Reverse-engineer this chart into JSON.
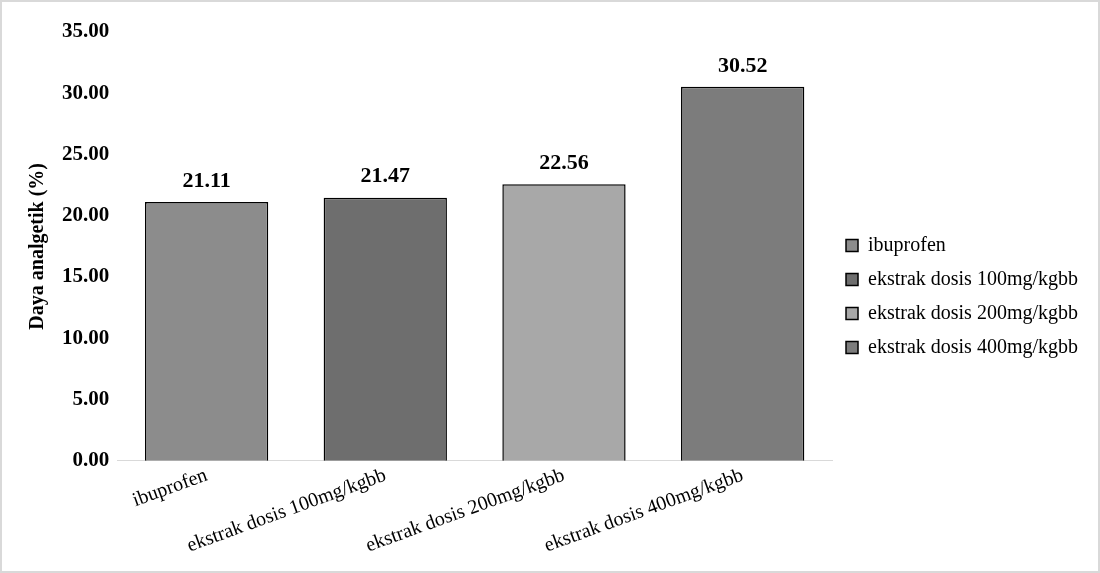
{
  "chart_data": {
    "type": "bar",
    "ylabel": "Daya analgetik (%)",
    "categories": [
      "ibuprofen",
      "ekstrak dosis 100mg/kgbb",
      "ekstrak dosis 200mg/kgbb",
      "ekstrak dosis 400mg/kgbb"
    ],
    "series": [
      {
        "name": "ibuprofen",
        "color": "#8c8c8c",
        "values": [
          21.11,
          null,
          null,
          null
        ]
      },
      {
        "name": "ekstrak dosis 100mg/kgbb",
        "color": "#6e6e6e",
        "values": [
          null,
          21.47,
          null,
          null
        ]
      },
      {
        "name": "ekstrak dosis 200mg/kgbb",
        "color": "#a8a8a8",
        "values": [
          null,
          null,
          22.56,
          null
        ]
      },
      {
        "name": "ekstrak dosis 400mg/kgbb",
        "color": "#7c7c7c",
        "values": [
          null,
          null,
          null,
          30.52
        ]
      }
    ],
    "ylim": [
      0,
      35
    ],
    "yticks": [
      {
        "value": 0,
        "label": "0.00"
      },
      {
        "value": 5,
        "label": "5.00"
      },
      {
        "value": 10,
        "label": "10.00"
      },
      {
        "value": 15,
        "label": "15.00"
      },
      {
        "value": 20,
        "label": "20.00"
      },
      {
        "value": 25,
        "label": "25.00"
      },
      {
        "value": 30,
        "label": "30.00"
      },
      {
        "value": 35,
        "label": "35.00"
      }
    ],
    "data_labels": true,
    "grid": false,
    "legend": "right"
  }
}
